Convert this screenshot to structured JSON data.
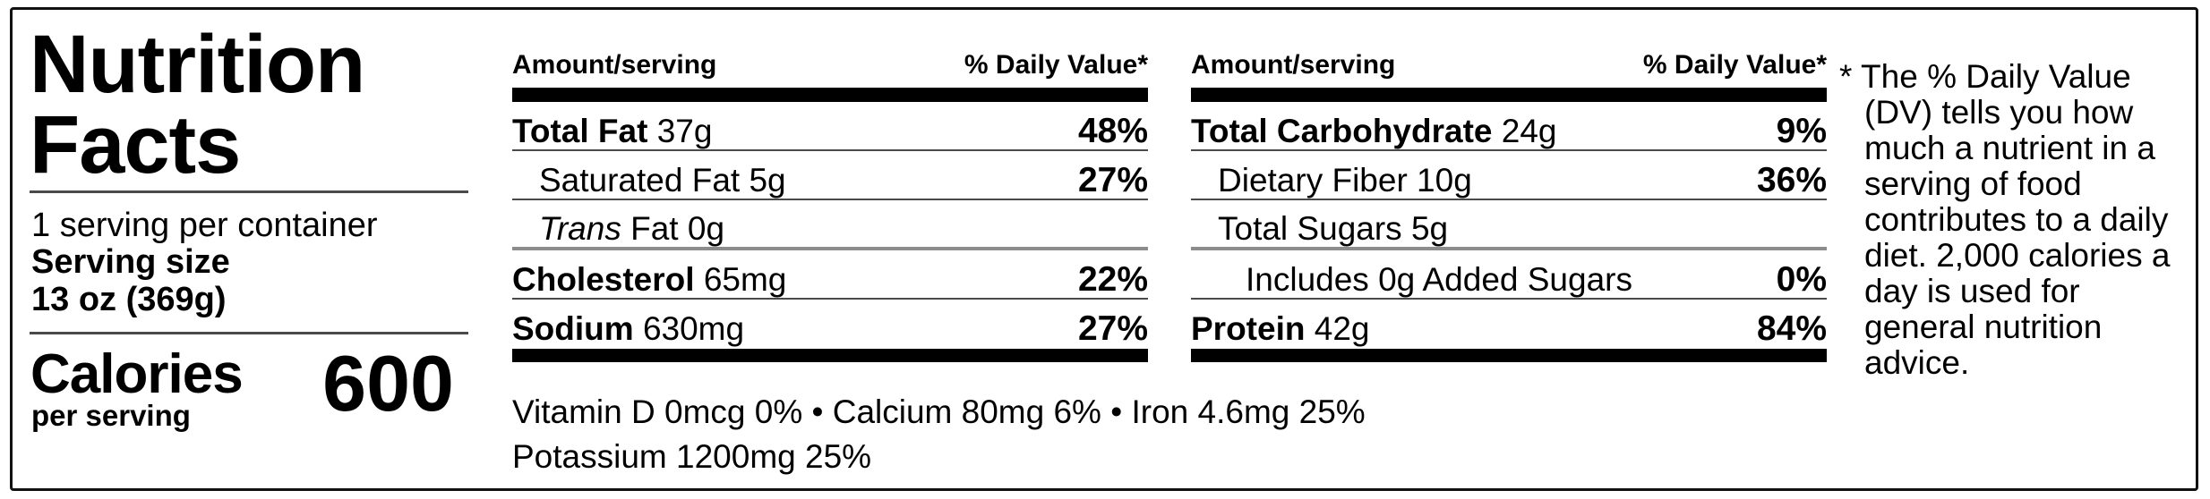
{
  "nutrition_label": {
    "title": "Nutrition Facts",
    "servings_per_container": "1 serving per container",
    "serving_size_label": "Serving size",
    "serving_size_value": "13 oz (369g)",
    "calories": {
      "label": "Calories",
      "sublabel": "per serving",
      "value": "600"
    }
  },
  "columns": [
    {
      "header_left": "Amount/serving",
      "header_right": "% Daily Value*",
      "rows": [
        {
          "name": "Total Fat",
          "amount": "37g",
          "dv": "48%"
        },
        {
          "label": "Saturated Fat 5g",
          "dv": "27%"
        },
        {
          "italic": "Trans",
          "label": "Fat 0g",
          "dv": ""
        },
        {
          "name": "Cholesterol",
          "amount": "65mg",
          "dv": "22%"
        },
        {
          "name": "Sodium",
          "amount": "630mg",
          "dv": "27%"
        }
      ]
    },
    {
      "header_left": "Amount/serving",
      "header_right": "% Daily Value*",
      "rows": [
        {
          "name": "Total Carbohydrate",
          "amount": "24g",
          "dv": "9%"
        },
        {
          "label": "Dietary Fiber 10g",
          "dv": "36%"
        },
        {
          "label": "Total Sugars 5g",
          "dv": ""
        },
        {
          "label": "Includes 0g Added Sugars",
          "dv": "0%"
        },
        {
          "name": "Protein",
          "amount": "42g",
          "dv": "84%"
        }
      ]
    }
  ],
  "micronutrients": {
    "line1": "Vitamin D 0mcg 0% • Calcium 80mg 6% • Iron 4.6mg 25%",
    "line2": "Potassium 1200mg 25%"
  },
  "footnote": {
    "marker": "*",
    "text": "The % Daily Value (DV) tells you how much a nutrient in a serving of food contributes to a daily diet. 2,000 calories a day is used for general nutrition advice."
  }
}
